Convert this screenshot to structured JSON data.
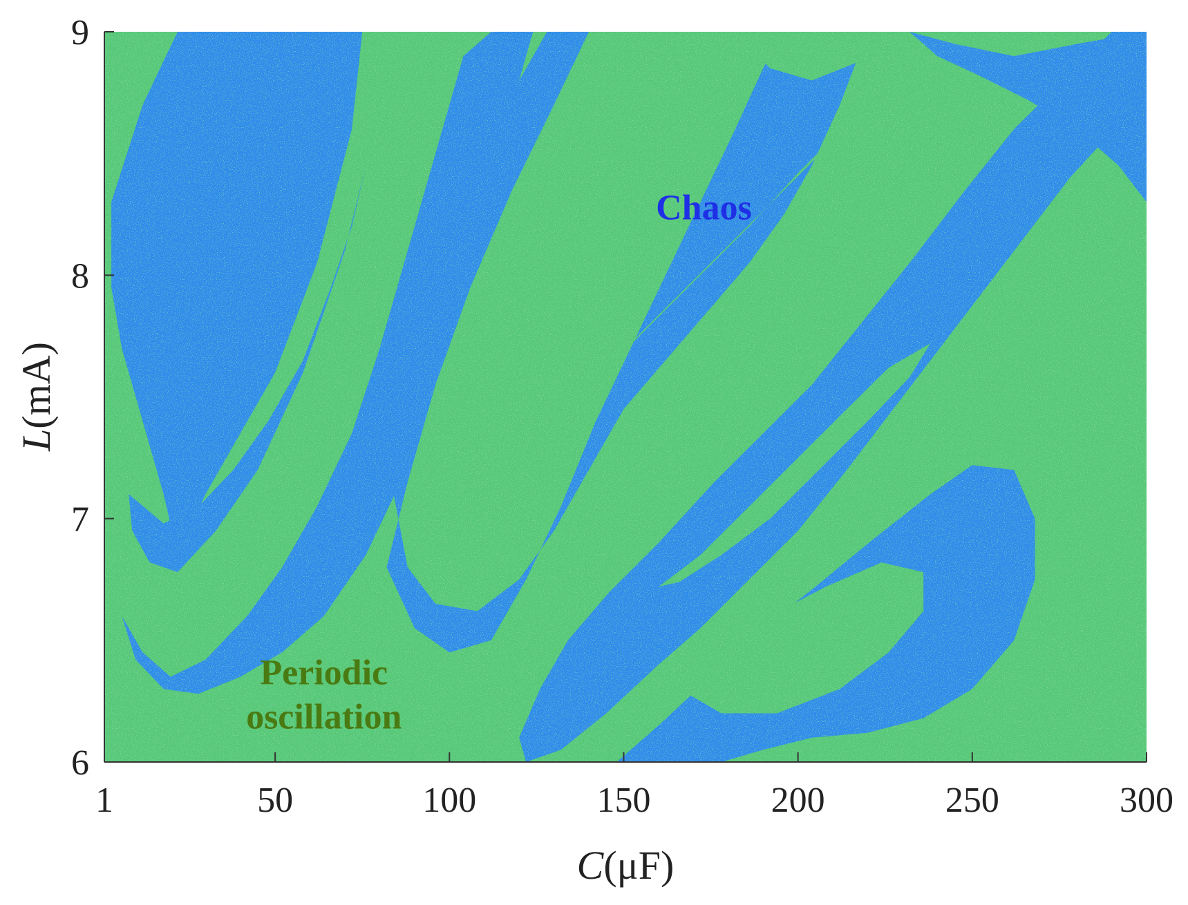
{
  "chart_data": {
    "type": "heatmap",
    "title": "",
    "xlabel": "C(μF)",
    "ylabel": "L(mA)",
    "xlabel_parts": {
      "italic": "C",
      "rest": "(μF)"
    },
    "ylabel_parts": {
      "italic": "L",
      "rest": "(mA)"
    },
    "xlim": [
      1,
      300
    ],
    "ylim": [
      6,
      9
    ],
    "x_ticks": [
      1,
      50,
      100,
      150,
      200,
      250,
      300
    ],
    "x_tick_labels": [
      "1",
      "50",
      "100",
      "150",
      "200",
      "250",
      "300"
    ],
    "y_ticks": [
      6,
      7,
      8,
      9
    ],
    "y_tick_labels": [
      "6",
      "7",
      "8",
      "9"
    ],
    "grid": false,
    "legend": "none",
    "colors": {
      "periodic": "#57c878",
      "chaos": "#2f8cea",
      "chaos_label": "#1f2fe6",
      "periodic_label": "#4a7a12",
      "axis": "#333333"
    },
    "annotations": [
      {
        "name": "chaos",
        "lines": [
          "Chaos"
        ],
        "x": 173,
        "y": 8.23
      },
      {
        "name": "periodic",
        "lines": [
          "Periodic",
          "oscillation"
        ],
        "x": 64,
        "y": 6.32
      }
    ],
    "regions": [
      {
        "state": "chaos",
        "points": [
          [
            3,
            8.3
          ],
          [
            12,
            8.7
          ],
          [
            22,
            9
          ],
          [
            75,
            9
          ],
          [
            72,
            8.6
          ],
          [
            62,
            8.05
          ],
          [
            50,
            7.6
          ],
          [
            40,
            7.35
          ],
          [
            30,
            7.1
          ],
          [
            22,
            6.85
          ],
          [
            18,
            7.1
          ],
          [
            12,
            7.4
          ],
          [
            6,
            7.7
          ],
          [
            3,
            7.95
          ]
        ]
      },
      {
        "state": "chaos",
        "points": [
          [
            8,
            7.1
          ],
          [
            18,
            6.98
          ],
          [
            28,
            7.05
          ],
          [
            38,
            7.2
          ],
          [
            48,
            7.4
          ],
          [
            58,
            7.65
          ],
          [
            66,
            7.95
          ],
          [
            72,
            8.2
          ],
          [
            76,
            8.45
          ],
          [
            70,
            8.1
          ],
          [
            58,
            7.6
          ],
          [
            45,
            7.2
          ],
          [
            33,
            6.95
          ],
          [
            22,
            6.78
          ],
          [
            14,
            6.82
          ],
          [
            9,
            6.95
          ]
        ]
      },
      {
        "state": "chaos",
        "points": [
          [
            6,
            6.6
          ],
          [
            12,
            6.45
          ],
          [
            20,
            6.35
          ],
          [
            30,
            6.42
          ],
          [
            42,
            6.6
          ],
          [
            52,
            6.8
          ],
          [
            62,
            7.05
          ],
          [
            72,
            7.35
          ],
          [
            80,
            7.7
          ],
          [
            86,
            8.0
          ],
          [
            92,
            8.3
          ],
          [
            98,
            8.6
          ],
          [
            104,
            8.9
          ],
          [
            112,
            9
          ],
          [
            124,
            9
          ],
          [
            118,
            8.7
          ],
          [
            110,
            8.3
          ],
          [
            102,
            7.9
          ],
          [
            94,
            7.5
          ],
          [
            86,
            7.15
          ],
          [
            76,
            6.85
          ],
          [
            64,
            6.6
          ],
          [
            52,
            6.45
          ],
          [
            40,
            6.35
          ],
          [
            28,
            6.28
          ],
          [
            18,
            6.3
          ],
          [
            10,
            6.42
          ]
        ]
      },
      {
        "state": "chaos",
        "points": [
          [
            82,
            6.8
          ],
          [
            90,
            6.55
          ],
          [
            100,
            6.45
          ],
          [
            112,
            6.5
          ],
          [
            122,
            6.75
          ],
          [
            132,
            7.05
          ],
          [
            142,
            7.4
          ],
          [
            152,
            7.7
          ],
          [
            162,
            8.0
          ],
          [
            172,
            8.3
          ],
          [
            182,
            8.6
          ],
          [
            190,
            8.85
          ],
          [
            196,
            9
          ],
          [
            220,
            9
          ],
          [
            212,
            8.7
          ],
          [
            204,
            8.45
          ],
          [
            196,
            8.25
          ],
          [
            186,
            8.05
          ],
          [
            174,
            7.85
          ],
          [
            162,
            7.65
          ],
          [
            150,
            7.45
          ],
          [
            140,
            7.2
          ],
          [
            130,
            6.95
          ],
          [
            120,
            6.75
          ],
          [
            108,
            6.62
          ],
          [
            96,
            6.65
          ],
          [
            88,
            6.8
          ],
          [
            84,
            7.1
          ],
          [
            86,
            7.5
          ],
          [
            92,
            7.9
          ],
          [
            100,
            8.25
          ],
          [
            110,
            8.55
          ],
          [
            120,
            8.8
          ],
          [
            128,
            9
          ],
          [
            140,
            9
          ],
          [
            130,
            8.7
          ],
          [
            118,
            8.35
          ],
          [
            106,
            7.95
          ],
          [
            96,
            7.55
          ],
          [
            88,
            7.15
          ]
        ]
      },
      {
        "state": "chaos",
        "points": [
          [
            122,
            6.0
          ],
          [
            132,
            6.05
          ],
          [
            145,
            6.2
          ],
          [
            160,
            6.4
          ],
          [
            172,
            6.55
          ],
          [
            186,
            6.75
          ],
          [
            200,
            6.95
          ],
          [
            214,
            7.2
          ],
          [
            230,
            7.5
          ],
          [
            246,
            7.8
          ],
          [
            262,
            8.1
          ],
          [
            278,
            8.4
          ],
          [
            294,
            8.65
          ],
          [
            300,
            8.75
          ],
          [
            300,
            9
          ],
          [
            290,
            9
          ],
          [
            276,
            8.8
          ],
          [
            262,
            8.6
          ],
          [
            248,
            8.35
          ],
          [
            232,
            8.05
          ],
          [
            218,
            7.8
          ],
          [
            204,
            7.55
          ],
          [
            190,
            7.35
          ],
          [
            176,
            7.15
          ],
          [
            160,
            6.9
          ],
          [
            146,
            6.7
          ],
          [
            134,
            6.5
          ],
          [
            126,
            6.3
          ],
          [
            120,
            6.1
          ]
        ]
      },
      {
        "state": "chaos",
        "points": [
          [
            232,
            9
          ],
          [
            245,
            8.95
          ],
          [
            262,
            8.9
          ],
          [
            280,
            8.95
          ],
          [
            300,
            9
          ],
          [
            300,
            8.3
          ],
          [
            292,
            8.45
          ],
          [
            280,
            8.6
          ],
          [
            266,
            8.72
          ],
          [
            252,
            8.82
          ],
          [
            240,
            8.9
          ]
        ]
      },
      {
        "state": "chaos",
        "points": [
          [
            148,
            6.0
          ],
          [
            160,
            6.15
          ],
          [
            175,
            6.35
          ],
          [
            190,
            6.55
          ],
          [
            205,
            6.72
          ],
          [
            222,
            6.92
          ],
          [
            238,
            7.1
          ],
          [
            250,
            7.22
          ],
          [
            262,
            7.2
          ],
          [
            268,
            7.0
          ],
          [
            268,
            6.75
          ],
          [
            262,
            6.5
          ],
          [
            250,
            6.3
          ],
          [
            236,
            6.18
          ],
          [
            220,
            6.12
          ],
          [
            204,
            6.1
          ],
          [
            190,
            6.05
          ],
          [
            178,
            6.0
          ]
        ]
      },
      {
        "state": "periodic",
        "points": [
          [
            166,
            6.3
          ],
          [
            178,
            6.2
          ],
          [
            194,
            6.2
          ],
          [
            212,
            6.3
          ],
          [
            226,
            6.45
          ],
          [
            236,
            6.62
          ],
          [
            236,
            6.78
          ],
          [
            224,
            6.82
          ],
          [
            208,
            6.72
          ],
          [
            192,
            6.6
          ],
          [
            178,
            6.48
          ],
          [
            168,
            6.38
          ]
        ]
      },
      {
        "state": "periodic",
        "points": [
          [
            160,
            6.72
          ],
          [
            172,
            6.85
          ],
          [
            186,
            7.05
          ],
          [
            200,
            7.25
          ],
          [
            214,
            7.45
          ],
          [
            226,
            7.62
          ],
          [
            238,
            7.72
          ],
          [
            232,
            7.58
          ],
          [
            220,
            7.4
          ],
          [
            206,
            7.2
          ],
          [
            192,
            7.0
          ],
          [
            178,
            6.85
          ],
          [
            166,
            6.74
          ]
        ]
      },
      {
        "state": "periodic",
        "points": [
          [
            114,
            7.2
          ],
          [
            126,
            7.35
          ],
          [
            140,
            7.55
          ],
          [
            154,
            7.75
          ],
          [
            168,
            7.95
          ],
          [
            182,
            8.15
          ],
          [
            196,
            8.35
          ],
          [
            210,
            8.55
          ],
          [
            222,
            8.72
          ],
          [
            214,
            8.62
          ],
          [
            200,
            8.42
          ],
          [
            186,
            8.2
          ],
          [
            172,
            8.0
          ],
          [
            158,
            7.8
          ],
          [
            144,
            7.6
          ],
          [
            130,
            7.42
          ],
          [
            120,
            7.28
          ]
        ]
      },
      {
        "state": "periodic",
        "points": [
          [
            182,
            9
          ],
          [
            192,
            8.85
          ],
          [
            204,
            8.8
          ],
          [
            218,
            8.88
          ],
          [
            230,
            9
          ]
        ]
      }
    ]
  }
}
